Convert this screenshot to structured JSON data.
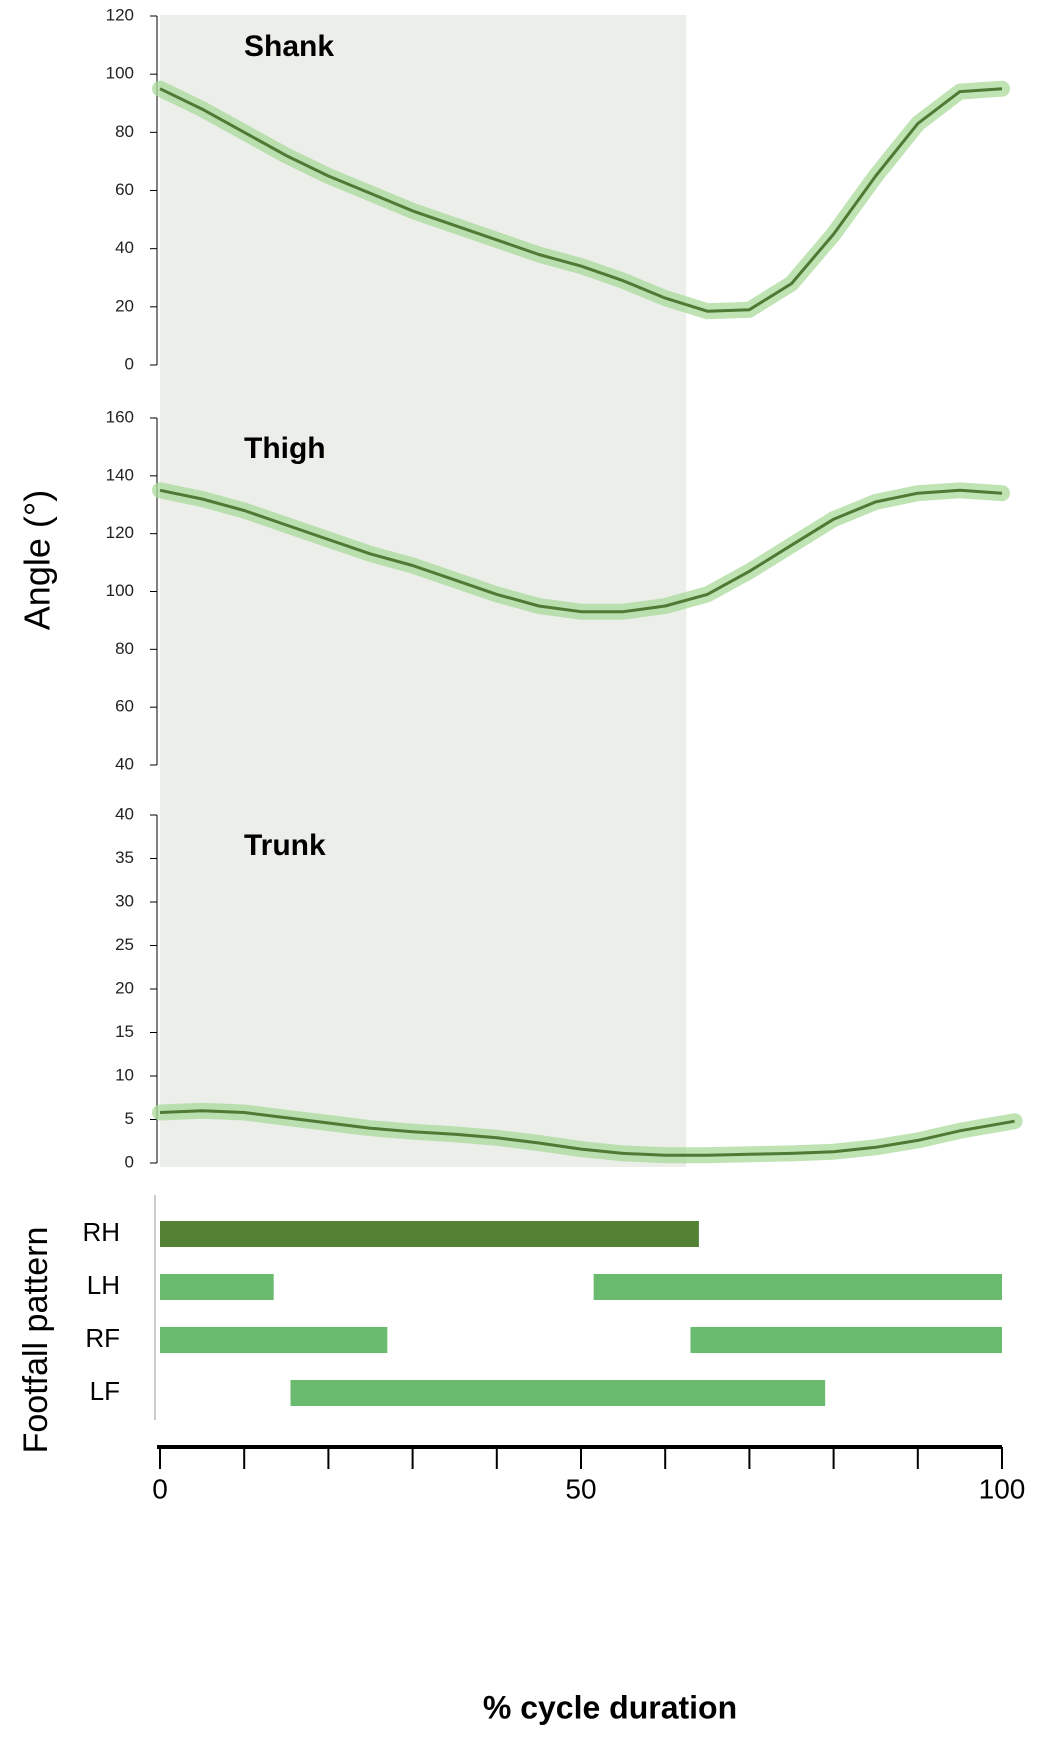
{
  "chart_data": [
    {
      "type": "line",
      "title": "Shank",
      "ylabel": "Angle (°)",
      "color": "#4e7a35",
      "band_color": "#a9d99a",
      "highlight_x": [
        0,
        62.5
      ],
      "highlight_color": "#eceee9",
      "xlim": [
        0,
        100
      ],
      "ylim": [
        0,
        120
      ],
      "yticks": [
        0,
        20,
        40,
        60,
        80,
        100,
        120
      ],
      "x": [
        0,
        5,
        10,
        15,
        20,
        25,
        30,
        35,
        40,
        45,
        50,
        55,
        60,
        65,
        70,
        75,
        80,
        85,
        90,
        95,
        100
      ],
      "values": [
        95,
        88,
        80,
        72,
        65,
        59,
        53,
        48,
        43,
        38,
        34,
        29,
        23,
        18.5,
        19,
        28,
        45,
        65,
        83,
        94,
        95
      ]
    },
    {
      "type": "line",
      "title": "Thigh",
      "color": "#4e7a35",
      "band_color": "#a9d99a",
      "xlim": [
        0,
        100
      ],
      "ylim": [
        40,
        160
      ],
      "yticks": [
        40,
        60,
        80,
        100,
        120,
        140,
        160
      ],
      "x": [
        0,
        5,
        10,
        15,
        20,
        25,
        30,
        35,
        40,
        45,
        50,
        55,
        60,
        65,
        70,
        75,
        80,
        85,
        90,
        95,
        100
      ],
      "values": [
        135,
        132,
        128,
        123,
        118,
        113,
        109,
        104,
        99,
        95,
        93,
        93,
        95,
        99,
        107,
        116,
        125,
        131,
        134,
        135,
        134
      ]
    },
    {
      "type": "line",
      "title": "Trunk",
      "color": "#4e7a35",
      "band_color": "#a9d99a",
      "xlim": [
        0,
        100
      ],
      "ylim": [
        0,
        40
      ],
      "yticks": [
        0,
        5,
        10,
        15,
        20,
        25,
        30,
        35,
        40
      ],
      "x": [
        0,
        5,
        10,
        15,
        20,
        25,
        30,
        35,
        40,
        45,
        50,
        55,
        60,
        65,
        70,
        75,
        80,
        85,
        90,
        95,
        101.5
      ],
      "values": [
        5.8,
        6,
        5.8,
        5.2,
        4.6,
        4,
        3.6,
        3.3,
        2.9,
        2.3,
        1.6,
        1.1,
        0.9,
        0.9,
        1,
        1.1,
        1.3,
        1.8,
        2.6,
        3.7,
        4.8
      ]
    },
    {
      "type": "range",
      "ylabel": "Footfall pattern",
      "xlabel": "% cycle duration",
      "categories": [
        "RH",
        "LH",
        "RF",
        "LF"
      ],
      "ranges": [
        [
          [
            0,
            64
          ]
        ],
        [
          [
            0,
            13.5
          ],
          [
            51.5,
            100
          ]
        ],
        [
          [
            0,
            27
          ],
          [
            63,
            100
          ]
        ],
        [
          [
            15.5,
            79
          ]
        ]
      ],
      "colors": [
        "#548235",
        "#6aba6f",
        "#6aba6f",
        "#6aba6f"
      ],
      "xlim": [
        0,
        100
      ],
      "xticks": [
        0,
        50,
        100
      ],
      "minor_xticks": [
        10,
        20,
        30,
        40,
        60,
        70,
        80,
        90
      ]
    }
  ]
}
